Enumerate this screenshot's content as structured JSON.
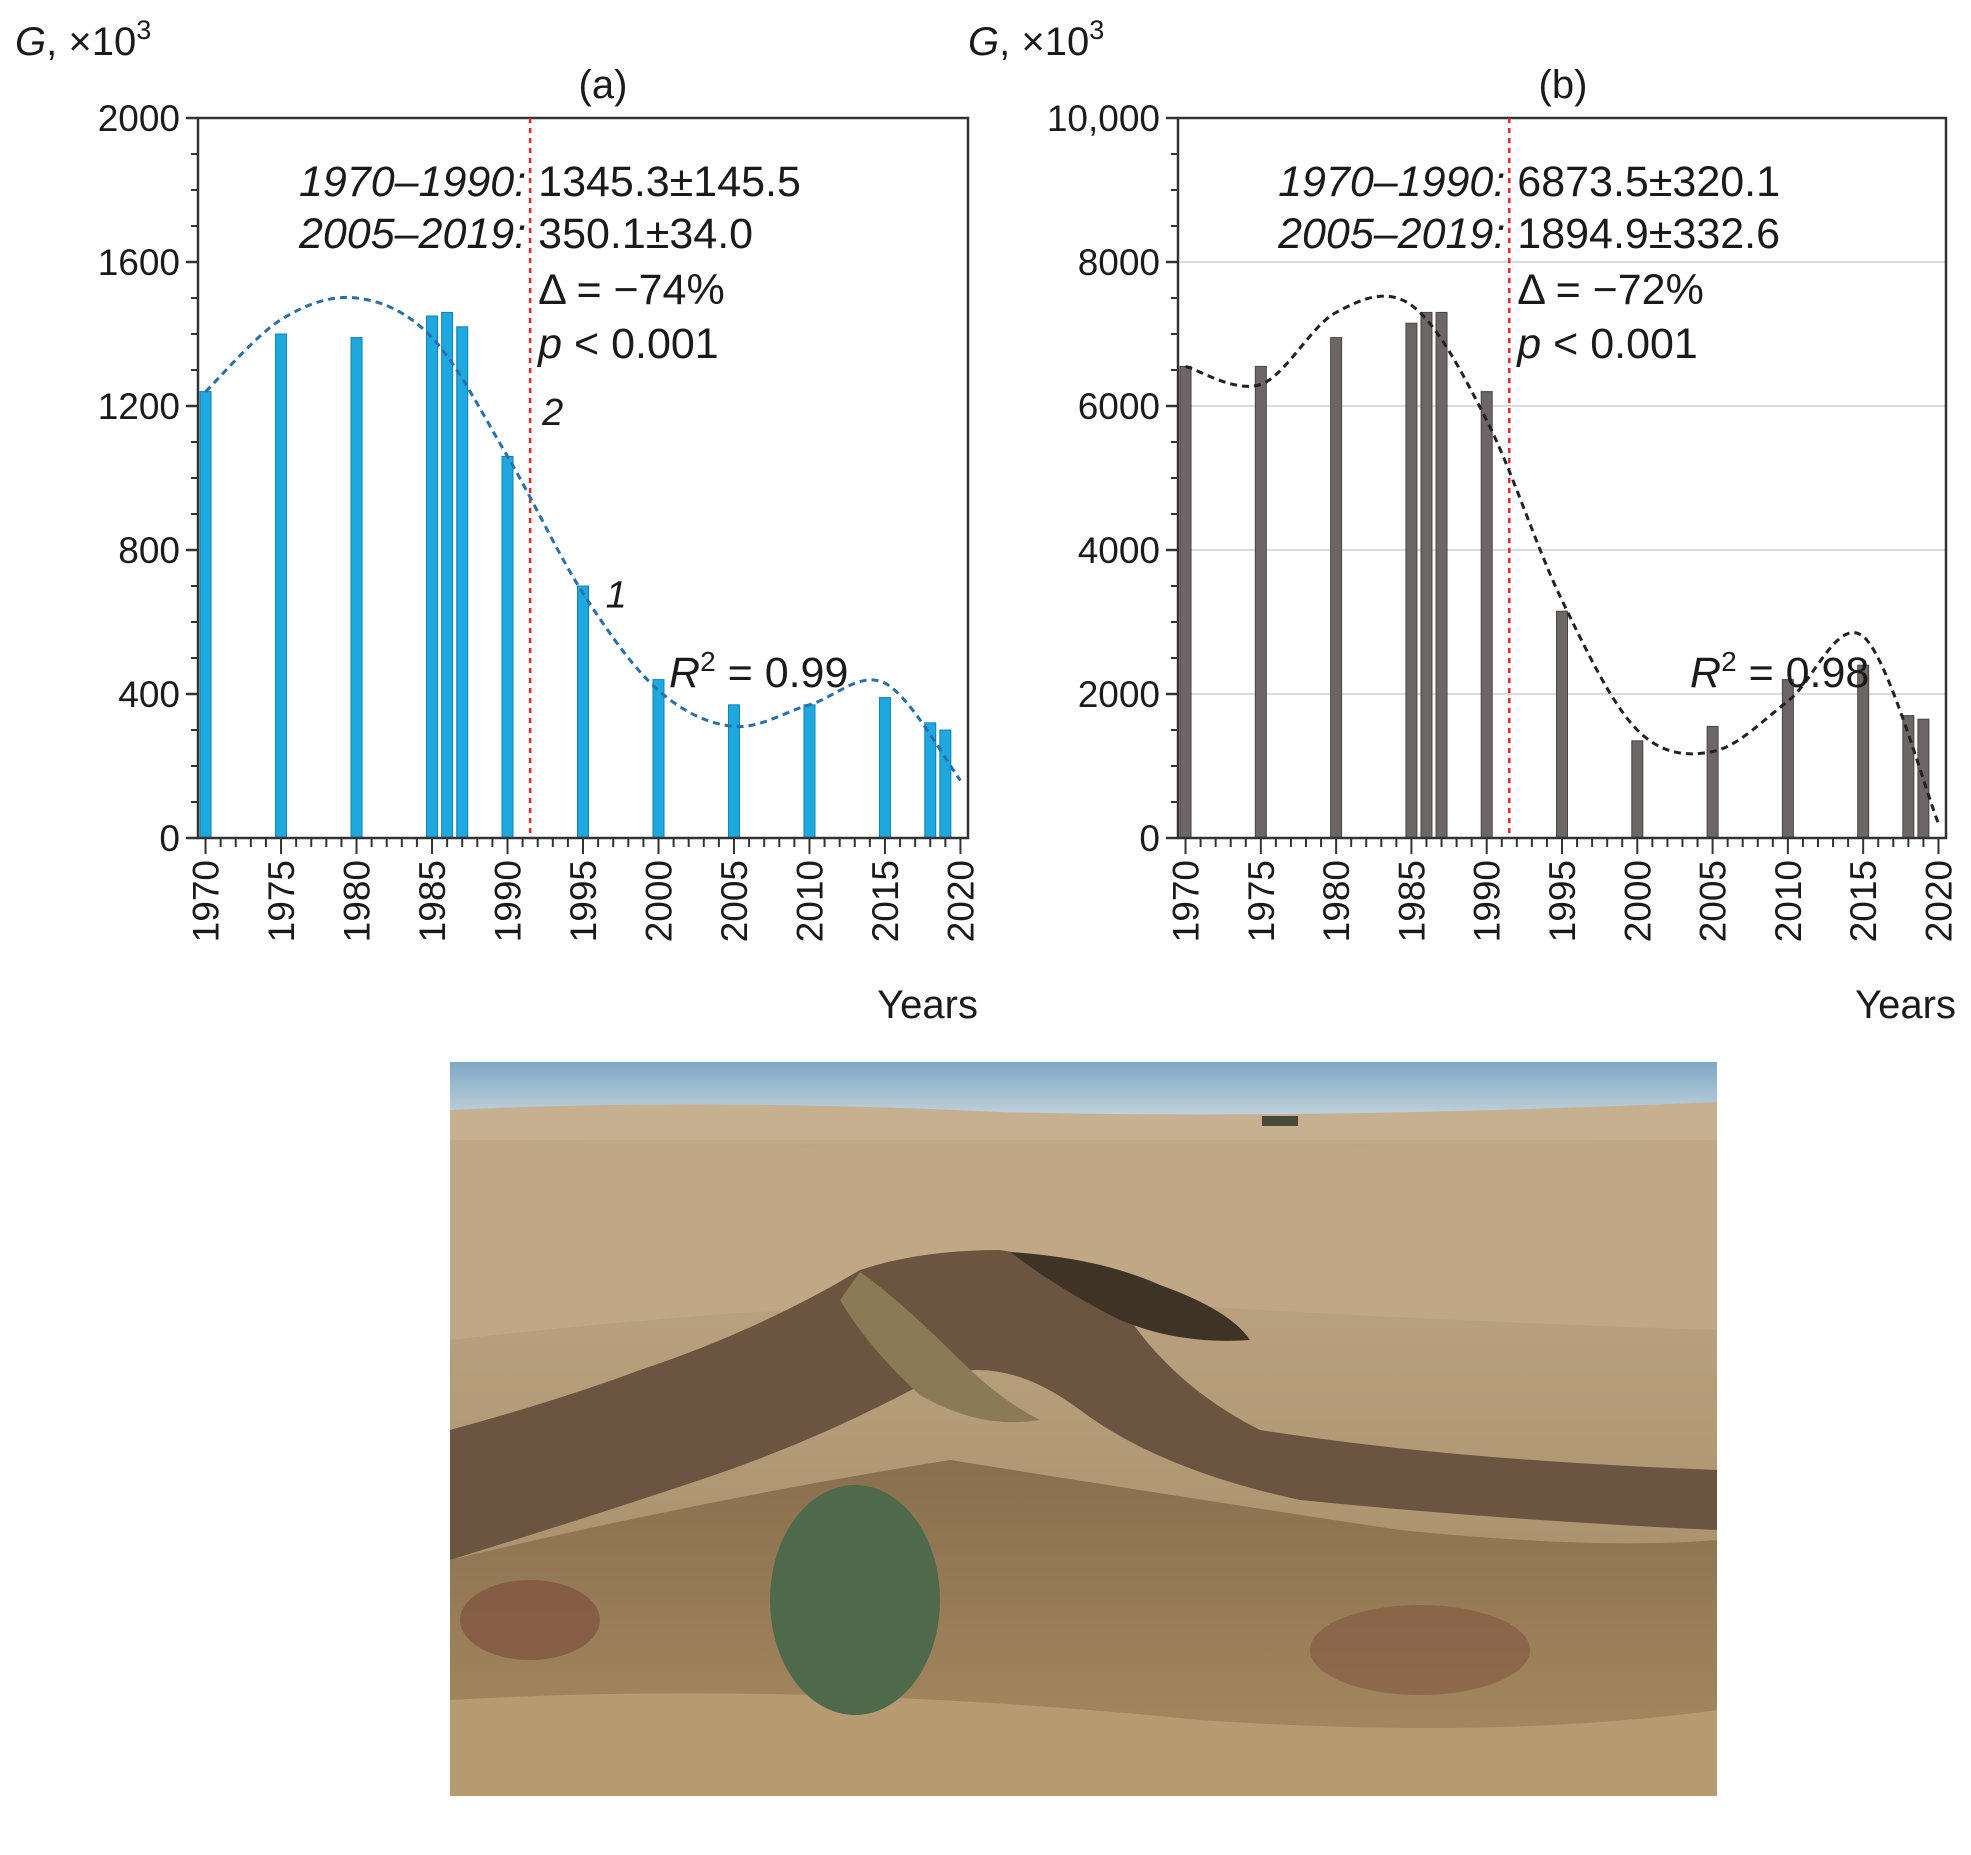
{
  "chart_data": [
    {
      "type": "bar",
      "panel_label": "(a)",
      "ylabel": "G, ×10",
      "ylabel_sup": "3",
      "xlabel": "Years",
      "xlim": [
        1969.5,
        2020.5
      ],
      "ylim": [
        0,
        2000
      ],
      "yticks": [
        0,
        400,
        800,
        1200,
        1600,
        2000
      ],
      "ytick_labels": [
        "0",
        "400",
        "800",
        "1200",
        "1600",
        "2000"
      ],
      "xticks": [
        "1970",
        "1975",
        "1980",
        "1985",
        "1990",
        "1995",
        "2000",
        "2005",
        "2010",
        "2015",
        "2020"
      ],
      "grid": false,
      "bar_color": "#1ea8e0",
      "series": [
        {
          "x": [
            1970,
            1975,
            1980,
            1985,
            1986,
            1987,
            1990,
            1995,
            2000,
            2005,
            2010,
            2015,
            2018,
            2019
          ],
          "values": [
            1240,
            1400,
            1390,
            1450,
            1460,
            1420,
            1060,
            700,
            440,
            370,
            370,
            390,
            320,
            300
          ]
        }
      ],
      "trend": {
        "label": "1",
        "r2_label": "R",
        "r2_sup": "2",
        "r2_value": " = 0.99",
        "color": "#2a6fa8",
        "x": [
          1970,
          1975,
          1980,
          1985,
          1990,
          1995,
          2000,
          2005,
          2010,
          2015,
          2020
        ],
        "y": [
          1240,
          1440,
          1500,
          1390,
          1060,
          680,
          410,
          310,
          370,
          430,
          160
        ]
      },
      "divider": {
        "x": 1991.5,
        "label": "2",
        "color": "#e8262b"
      },
      "annotations": {
        "period1_label": "1970–1990:",
        "period1_value": "1345.3±145.5",
        "period2_label": "2005–2019:",
        "period2_value": "350.1±34.0",
        "delta": "Δ = −74%",
        "p_label": "p",
        "p_value": " < 0.001"
      }
    },
    {
      "type": "bar",
      "panel_label": "(b)",
      "ylabel": "G, ×10",
      "ylabel_sup": "3",
      "xlabel": "Years",
      "xlim": [
        1969.5,
        2020.5
      ],
      "ylim": [
        0,
        10000
      ],
      "yticks": [
        0,
        2000,
        4000,
        6000,
        8000,
        10000
      ],
      "ytick_labels": [
        "0",
        "2000",
        "4000",
        "6000",
        "8000",
        "10,000"
      ],
      "xticks": [
        "1970",
        "1975",
        "1980",
        "1985",
        "1990",
        "1995",
        "2000",
        "2005",
        "2010",
        "2015",
        "2020"
      ],
      "grid": true,
      "bar_color": "#6d6666",
      "series": [
        {
          "x": [
            1970,
            1975,
            1980,
            1985,
            1986,
            1987,
            1990,
            1995,
            2000,
            2005,
            2010,
            2015,
            2018,
            2019
          ],
          "values": [
            6550,
            6550,
            6950,
            7150,
            7300,
            7300,
            6200,
            3150,
            1350,
            1550,
            2200,
            2400,
            1700,
            1650
          ]
        }
      ],
      "trend": {
        "r2_label": "R",
        "r2_sup": "2",
        "r2_value": " = 0.98",
        "color": "#222222",
        "x": [
          1970,
          1975,
          1980,
          1985,
          1990,
          1995,
          2000,
          2005,
          2010,
          2015,
          2020
        ],
        "y": [
          6550,
          6300,
          7300,
          7400,
          5800,
          3300,
          1500,
          1200,
          1900,
          2800,
          200
        ]
      },
      "divider": {
        "x": 1991.5,
        "color": "#e8262b"
      },
      "annotations": {
        "period1_label": "1970–1990:",
        "period1_value": "6873.5±320.1",
        "period2_label": "2005–2019:",
        "period2_value": "1894.9±332.6",
        "delta": "Δ = −72%",
        "p_label": "p",
        "p_value": " < 0.001"
      }
    }
  ],
  "photo": {
    "subject": "gully",
    "sky_color": "#8fb4cf",
    "field_color": "#bba382",
    "dark_color": "#4e3f2c",
    "shrub_color": "#4f6a4a"
  }
}
